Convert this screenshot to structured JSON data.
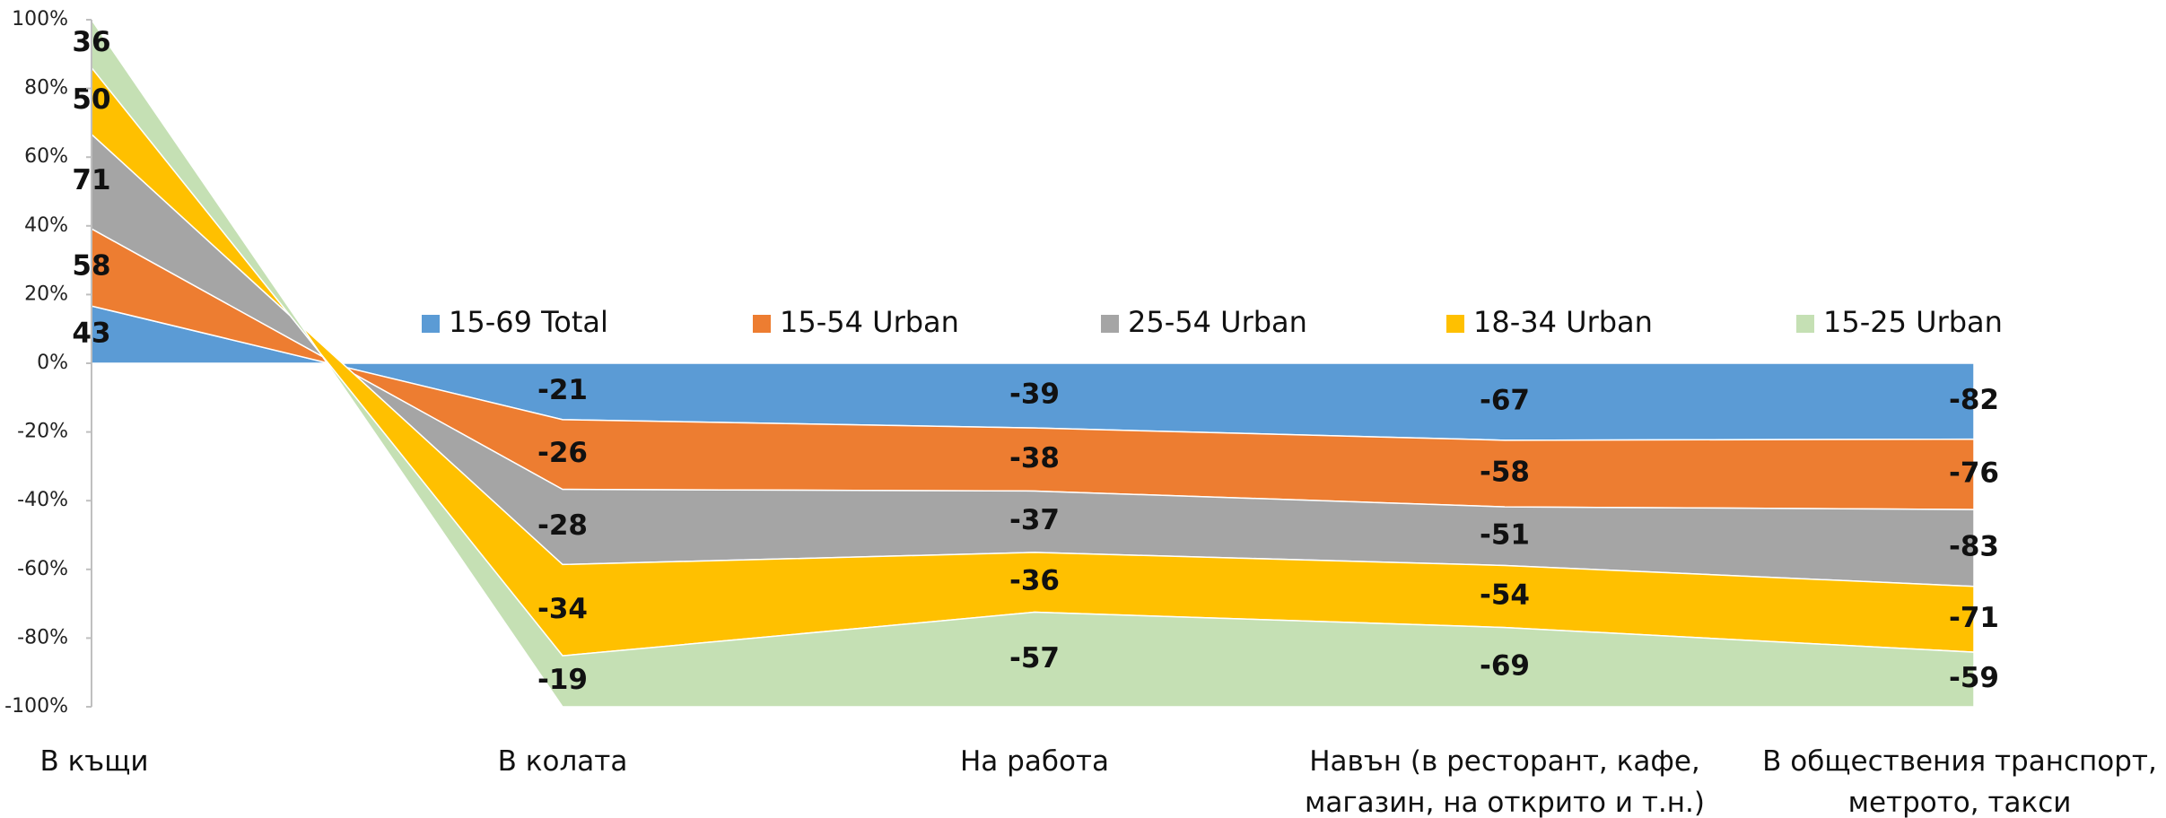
{
  "chart_data": {
    "type": "area",
    "stacking": "percent",
    "categories": [
      "В къщи",
      "В колата",
      "На работа",
      "Навън (в ресторант, кафе, магазин, на открито и т.н.)",
      "В обществения транспорт, метрото, такси"
    ],
    "series": [
      {
        "name": "15-69 Total",
        "color": "#5b9bd5",
        "values": [
          43,
          -21,
          -39,
          -67,
          -82
        ]
      },
      {
        "name": "15-54 Urban",
        "color": "#ed7d31",
        "values": [
          58,
          -26,
          -38,
          -58,
          -76
        ]
      },
      {
        "name": "25-54 Urban",
        "color": "#a5a5a5",
        "values": [
          71,
          -28,
          -37,
          -51,
          -83
        ]
      },
      {
        "name": "18-34 Urban",
        "color": "#ffc000",
        "values": [
          50,
          -34,
          -36,
          -54,
          -71
        ]
      },
      {
        "name": "15-25 Urban",
        "color": "#c5e0b4",
        "values": [
          36,
          -19,
          -57,
          -69,
          -59
        ]
      }
    ],
    "ylim": [
      -100,
      100
    ],
    "yticks": [
      {
        "value": 100,
        "label": "100%"
      },
      {
        "value": 80,
        "label": "80%"
      },
      {
        "value": 60,
        "label": "60%"
      },
      {
        "value": 40,
        "label": "40%"
      },
      {
        "value": 20,
        "label": "20%"
      },
      {
        "value": 0,
        "label": "0%"
      },
      {
        "value": -20,
        "label": "-20%"
      },
      {
        "value": -40,
        "label": "-40%"
      },
      {
        "value": -60,
        "label": "-60%"
      },
      {
        "value": -80,
        "label": "-80%"
      },
      {
        "value": -100,
        "label": "-100%"
      }
    ],
    "legend": "inside-top"
  }
}
